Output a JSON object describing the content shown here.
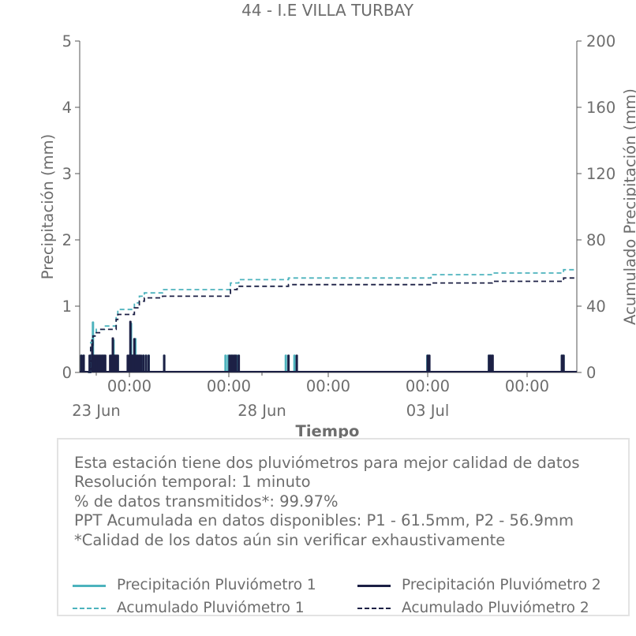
{
  "chart_data": {
    "type": "bar+line",
    "title": "44 - I.E VILLA TURBAY",
    "xlabel": "Tiempo",
    "ylabel_left": "Precipitación (mm)",
    "ylabel_right": "Acumulado Precipitación (mm)",
    "ylim_left": [
      0,
      5
    ],
    "ylim_right": [
      0,
      200
    ],
    "yticks_left": [
      0,
      1,
      2,
      3,
      4,
      5
    ],
    "yticks_right": [
      0,
      40,
      80,
      120,
      160,
      200
    ],
    "xlim_days": [
      22.5,
      37.5
    ],
    "xticks_major": [
      {
        "day": 24,
        "label": "00:00"
      },
      {
        "day": 27,
        "label": "00:00"
      },
      {
        "day": 30,
        "label": "00:00"
      },
      {
        "day": 33,
        "label": "00:00"
      },
      {
        "day": 36,
        "label": "00:00"
      }
    ],
    "xticks_minor": [
      {
        "day": 23,
        "label": "23 Jun"
      },
      {
        "day": 28,
        "label": "28 Jun"
      },
      {
        "day": 33,
        "label": "03 Jul"
      }
    ],
    "colors": {
      "p1": "#4db3bd",
      "p2": "#1c2045"
    },
    "series": [
      {
        "name": "Precipitación Pluviómetro 1",
        "kind": "bar",
        "color": "#4db3bd",
        "x": [
          22.55,
          22.62,
          22.85,
          22.9,
          22.95,
          23.02,
          23.1,
          23.18,
          23.25,
          23.45,
          23.48,
          23.52,
          23.57,
          23.6,
          23.65,
          24.0,
          24.05,
          24.1,
          24.12,
          24.18,
          24.25,
          24.3,
          24.42,
          24.5,
          24.58,
          25.05,
          26.9,
          26.98,
          27.05,
          27.1,
          27.18,
          27.28,
          28.72,
          28.98,
          32.99,
          33.04,
          34.85,
          34.9,
          34.95,
          37.05,
          37.1
        ],
        "values": [
          0.27,
          0.27,
          0.27,
          0.77,
          0.27,
          0.27,
          0.27,
          0.27,
          0.27,
          0.27,
          0.27,
          0.5,
          0.27,
          0.27,
          0.27,
          0.27,
          0.75,
          0.27,
          0.27,
          0.52,
          0.27,
          0.27,
          0.27,
          0.27,
          0.27,
          0.27,
          0.27,
          0.27,
          0.27,
          0.27,
          0.27,
          0.27,
          0.27,
          0.27,
          0.27,
          0.27,
          0.27,
          0.27,
          0.27,
          0.27,
          0.27
        ]
      },
      {
        "name": "Precipitación Pluviómetro 2",
        "kind": "bar",
        "color": "#1c2045",
        "x": [
          22.55,
          22.62,
          22.8,
          22.85,
          22.88,
          22.92,
          22.97,
          23.02,
          23.07,
          23.12,
          23.17,
          23.22,
          23.27,
          23.42,
          23.47,
          23.5,
          23.55,
          23.6,
          23.65,
          23.95,
          24.0,
          24.03,
          24.08,
          24.1,
          24.15,
          24.2,
          24.25,
          24.3,
          24.35,
          24.42,
          24.5,
          24.58,
          25.05,
          27.02,
          27.08,
          27.13,
          27.18,
          27.22,
          27.3,
          28.8,
          29.05,
          33.0,
          33.05,
          34.85,
          34.9,
          34.96,
          37.05,
          37.1
        ],
        "values": [
          0.27,
          0.27,
          0.27,
          0.27,
          0.5,
          0.27,
          0.27,
          0.27,
          0.27,
          0.27,
          0.27,
          0.27,
          0.27,
          0.27,
          0.27,
          0.53,
          0.27,
          0.27,
          0.27,
          0.27,
          0.27,
          0.78,
          0.27,
          0.27,
          0.52,
          0.27,
          0.27,
          0.27,
          0.27,
          0.27,
          0.27,
          0.27,
          0.27,
          0.27,
          0.27,
          0.27,
          0.27,
          0.27,
          0.27,
          0.27,
          0.27,
          0.27,
          0.27,
          0.27,
          0.27,
          0.27,
          0.27,
          0.27
        ]
      },
      {
        "name": "Acumulado Pluviómetro 1",
        "kind": "step",
        "color": "#4db3bd",
        "x": [
          22.75,
          22.83,
          22.9,
          23.0,
          23.25,
          23.55,
          23.6,
          23.65,
          24.1,
          24.15,
          24.3,
          24.45,
          25.0,
          26.97,
          27.05,
          27.3,
          28.65,
          28.8,
          33.0,
          33.1,
          34.85,
          34.95,
          37.0,
          37.1,
          37.5
        ],
        "values": [
          0,
          18,
          22,
          26,
          28,
          28,
          34,
          38,
          38,
          42,
          46,
          48,
          50,
          50,
          54,
          56,
          56,
          57,
          57,
          59,
          59,
          60,
          60,
          62,
          62
        ]
      },
      {
        "name": "Acumulado Pluviómetro 2",
        "kind": "step",
        "color": "#1c2045",
        "x": [
          22.75,
          22.83,
          22.9,
          23.0,
          23.1,
          23.55,
          23.6,
          23.65,
          24.1,
          24.15,
          24.3,
          24.45,
          25.0,
          27.0,
          27.05,
          27.25,
          28.65,
          28.8,
          33.0,
          33.1,
          34.85,
          34.95,
          37.0,
          37.1,
          37.5
        ],
        "values": [
          0,
          16,
          22,
          24,
          26,
          26,
          32,
          35,
          35,
          39,
          43,
          45,
          46,
          46,
          50,
          52,
          52,
          53,
          53,
          54,
          54,
          55,
          55,
          57,
          57
        ]
      }
    ],
    "legend_position": "bottom"
  },
  "info": {
    "lines": [
      "Esta estación tiene dos pluviómetros para mejor calidad de datos",
      "Resolución temporal: 1 minuto",
      "% de datos transmitidos*: 99.97%",
      "PPT Acumulada en datos disponibles: P1 - 61.5mm, P2 - 56.9mm",
      "*Calidad de los datos aún sin verificar exhaustivamente"
    ]
  },
  "legend": {
    "p1_bar": "Precipitación Pluviómetro 1",
    "p2_bar": "Precipitación Pluviómetro 2",
    "p1_acc": "Acumulado Pluviómetro 1",
    "p2_acc": "Acumulado Pluviómetro 2"
  }
}
